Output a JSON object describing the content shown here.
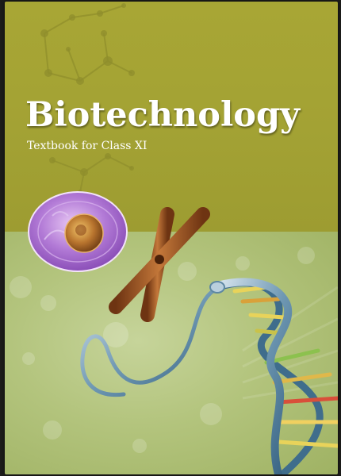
{
  "cover": {
    "title": "Biotechnology",
    "subtitle": "Textbook for Class XI"
  },
  "colors": {
    "top_band": "#a3a234",
    "bottom_band": "#b3c47d",
    "title_text": "#ffffff",
    "cell_membrane": "#b27ad6",
    "cell_nucleus": "#a86a2e",
    "chromosome": "#a0521f",
    "dna_strand": "#4f7c98"
  },
  "illustrations": [
    "molecule-network",
    "cell",
    "chromosome",
    "dna-helix"
  ]
}
